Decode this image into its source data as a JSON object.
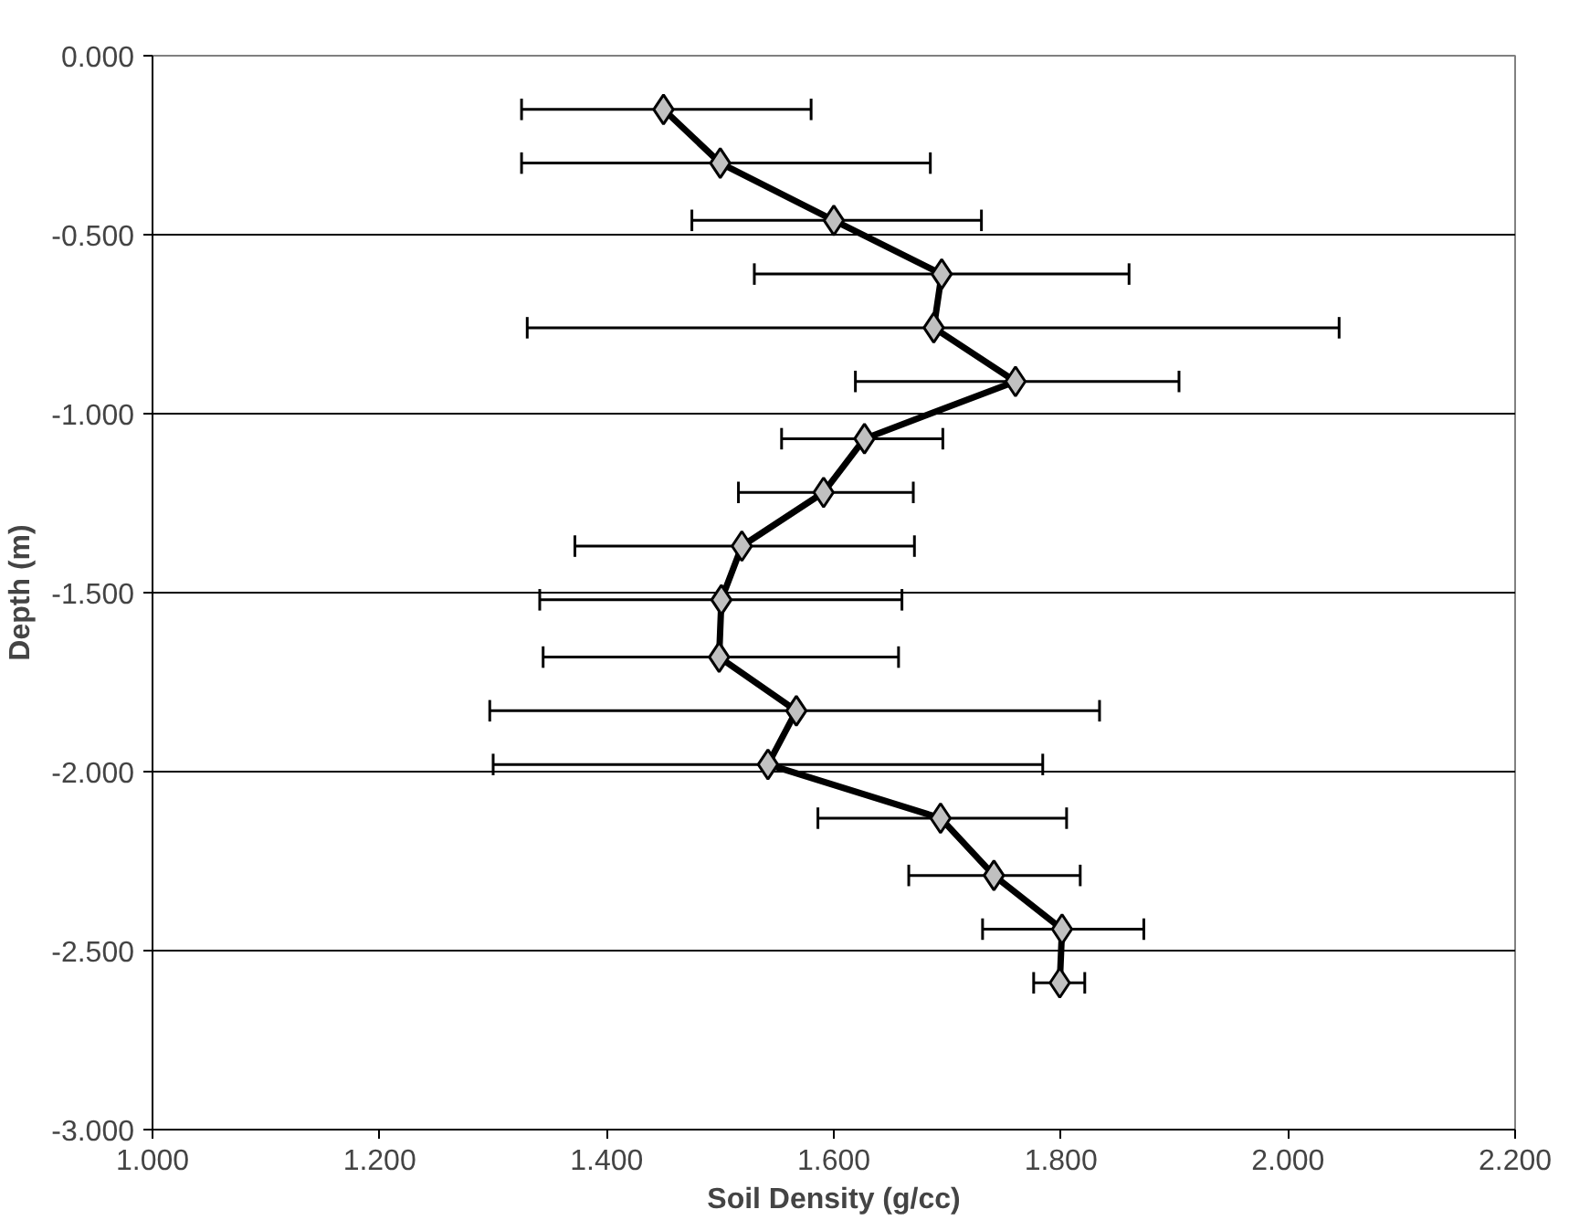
{
  "chart_data": {
    "type": "line",
    "xlabel": "Soil Density (g/cc)",
    "ylabel": "Depth (m)",
    "xlim": [
      1.0,
      2.2
    ],
    "ylim": [
      -3.0,
      0.0
    ],
    "xticks": [
      {
        "value": 1.0,
        "label": "1.000"
      },
      {
        "value": 1.2,
        "label": "1.200"
      },
      {
        "value": 1.4,
        "label": "1.400"
      },
      {
        "value": 1.6,
        "label": "1.600"
      },
      {
        "value": 1.8,
        "label": "1.800"
      },
      {
        "value": 2.0,
        "label": "2.000"
      },
      {
        "value": 2.2,
        "label": "2.200"
      }
    ],
    "yticks": [
      {
        "value": 0.0,
        "label": "0.000"
      },
      {
        "value": -0.5,
        "label": "-0.500"
      },
      {
        "value": -1.0,
        "label": "-1.000"
      },
      {
        "value": -1.5,
        "label": "-1.500"
      },
      {
        "value": -2.0,
        "label": "-2.000"
      },
      {
        "value": -2.5,
        "label": "-2.500"
      },
      {
        "value": -3.0,
        "label": "-3.000"
      }
    ],
    "grid": "y",
    "marker": "diamond",
    "line_style": "solid",
    "series": [
      {
        "color": "#000000",
        "x": [
          1.45,
          1.5,
          1.6,
          1.695,
          1.688,
          1.76,
          1.627,
          1.591,
          1.519,
          1.501,
          1.499,
          1.567,
          1.542,
          1.694,
          1.741,
          1.801,
          1.799
        ],
        "values": [
          -0.15,
          -0.3,
          -0.46,
          -0.61,
          -0.76,
          -0.91,
          -1.07,
          -1.22,
          -1.37,
          -1.52,
          -1.68,
          -1.83,
          -1.98,
          -2.13,
          -2.29,
          -2.44,
          -2.59
        ],
        "xerrors": [
          [
            1.325,
            1.58
          ],
          [
            1.325,
            1.685
          ],
          [
            1.475,
            1.73
          ],
          [
            1.53,
            1.86
          ],
          [
            1.33,
            2.045
          ],
          [
            1.619,
            1.904
          ],
          [
            1.554,
            1.696
          ],
          [
            1.516,
            1.67
          ],
          [
            1.372,
            1.671
          ],
          [
            1.341,
            1.66
          ],
          [
            1.344,
            1.657
          ],
          [
            1.297,
            1.834
          ],
          [
            1.3,
            1.784
          ],
          [
            1.586,
            1.805
          ],
          [
            1.666,
            1.817
          ],
          [
            1.731,
            1.873
          ],
          [
            1.776,
            1.821
          ]
        ]
      }
    ]
  }
}
